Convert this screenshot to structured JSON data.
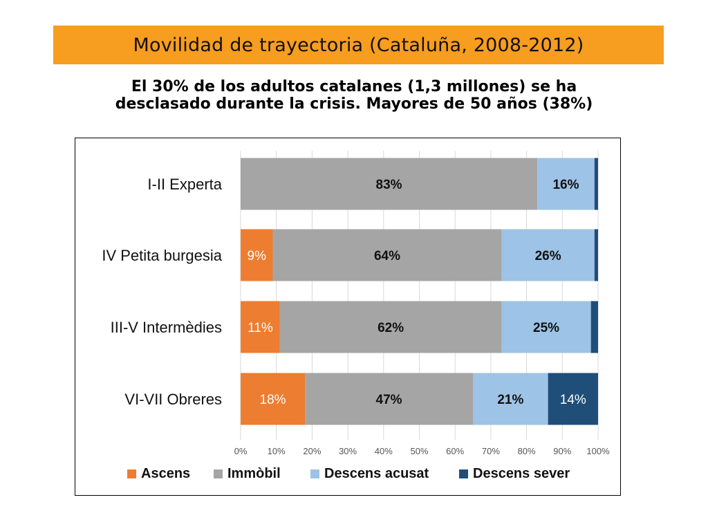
{
  "title": "Movilidad de trayectoria (Cataluña, 2008-2012)",
  "subtitle_lines": [
    "El 30% de los adultos catalanes (1,3 millones) se ha",
    "desclasado durante la crisis. Mayores de 50 años (38%)"
  ],
  "colors": {
    "banner": "#f79d1f",
    "Ascens": "#ed7d31",
    "Immobil": "#a5a5a5",
    "Descens acusat": "#9dc3e6",
    "Descens sever": "#1f4e79",
    "gridline": "#d9d9d9"
  },
  "chart_data": {
    "type": "bar",
    "orientation": "horizontal",
    "stacked": true,
    "categories": [
      "I-II Experta",
      "IV Petita burgesia",
      "III-V Intermèdies",
      "VI-VII Obreres"
    ],
    "series": [
      {
        "name": "Ascens",
        "values": [
          0,
          9,
          11,
          18
        ],
        "labels": [
          "",
          "9%",
          "11%",
          "18%"
        ],
        "label_bold": false,
        "label_color": "#ffffff"
      },
      {
        "name": "Immòbil",
        "values": [
          83,
          64,
          62,
          47
        ],
        "labels": [
          "83%",
          "64%",
          "62%",
          "47%"
        ],
        "label_bold": true,
        "label_color": "#111111"
      },
      {
        "name": "Descens acusat",
        "values": [
          16,
          26,
          25,
          21
        ],
        "labels": [
          "16%",
          "26%",
          "25%",
          "21%"
        ],
        "label_bold": true,
        "label_color": "#111111"
      },
      {
        "name": "Descens sever",
        "values": [
          1,
          1,
          2,
          14
        ],
        "labels": [
          "",
          "",
          "",
          "14%"
        ],
        "label_bold": false,
        "label_color": "#ffffff"
      }
    ],
    "xlim": [
      0,
      100
    ],
    "xticks": [
      "0%",
      "10%",
      "20%",
      "30%",
      "40%",
      "50%",
      "60%",
      "70%",
      "80%",
      "90%",
      "100%"
    ],
    "grid": true,
    "legend": "bottom"
  }
}
